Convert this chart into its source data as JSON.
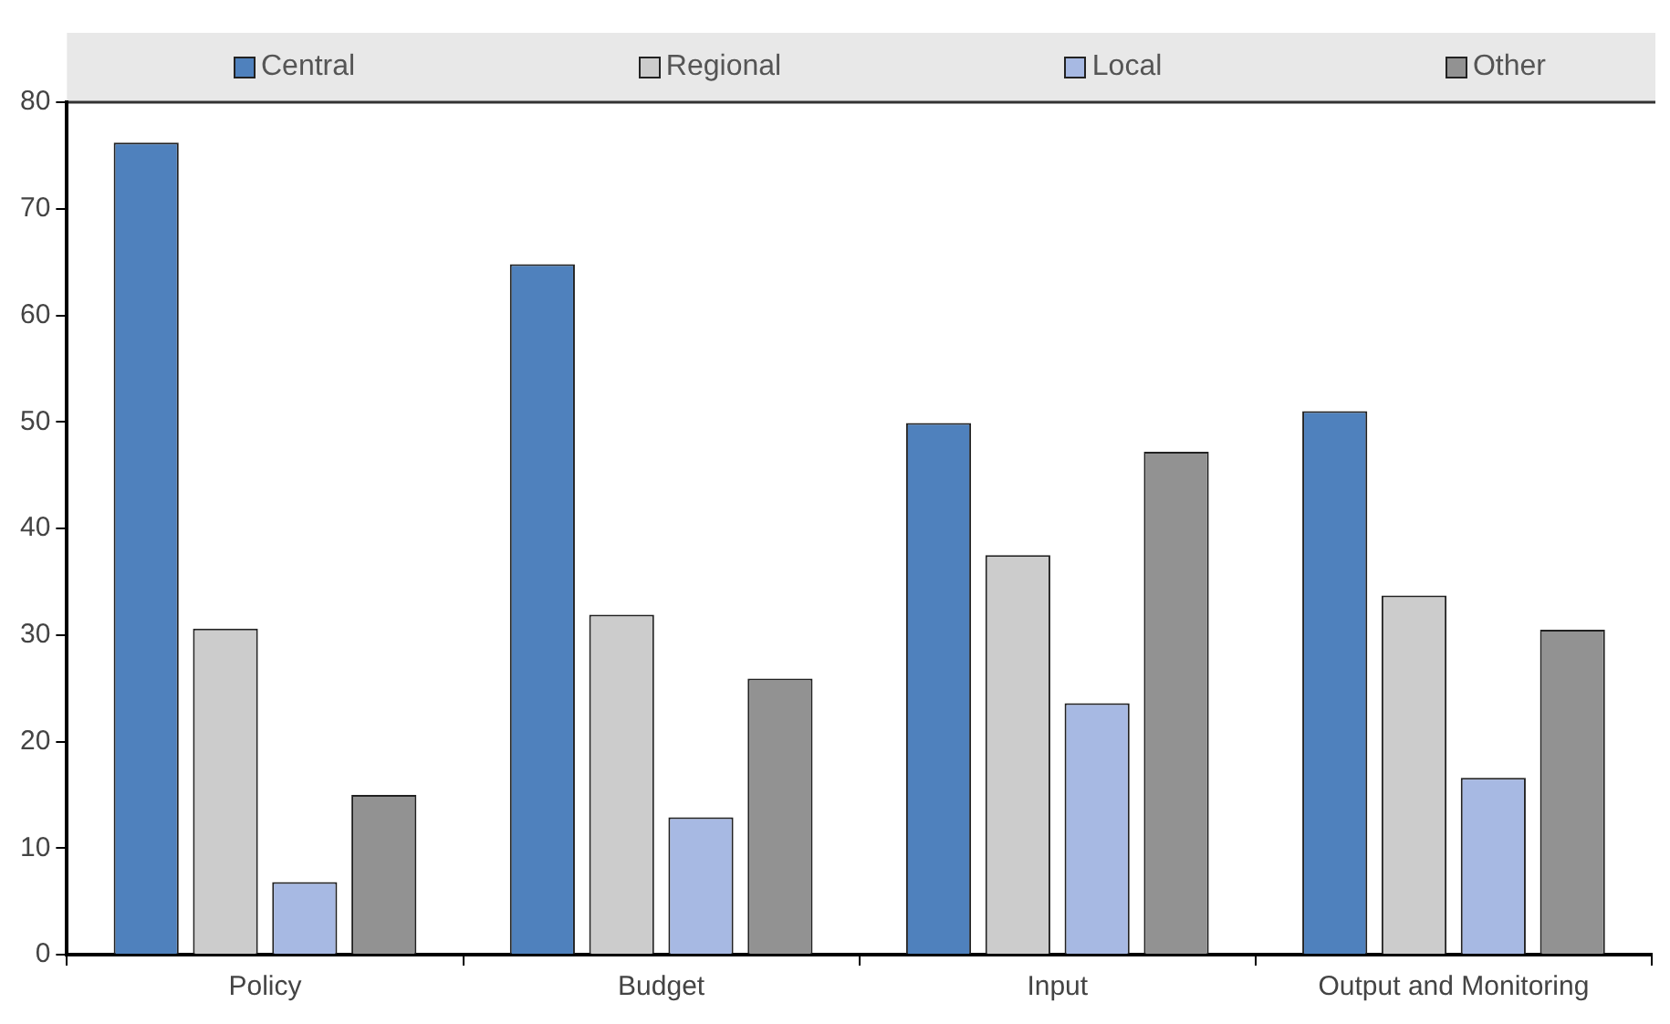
{
  "chart_data": {
    "type": "bar",
    "categories": [
      "Policy",
      "Budget",
      "Input",
      "Output and Monitoring"
    ],
    "series": [
      {
        "name": "Central",
        "color": "#4f81bd",
        "values": [
          76.2,
          64.8,
          49.9,
          51.0
        ]
      },
      {
        "name": "Regional",
        "color": "#cccccc",
        "values": [
          30.6,
          31.9,
          37.5,
          33.7
        ]
      },
      {
        "name": "Local",
        "color": "#a7b9e3",
        "values": [
          6.8,
          12.9,
          23.6,
          16.6
        ]
      },
      {
        "name": "Other",
        "color": "#929292",
        "values": [
          15.0,
          25.9,
          47.2,
          30.5
        ]
      }
    ],
    "ylim": [
      0,
      80
    ],
    "yticks": [
      0,
      10,
      20,
      30,
      40,
      50,
      60,
      70,
      80
    ],
    "grid": false,
    "legend": "top"
  }
}
